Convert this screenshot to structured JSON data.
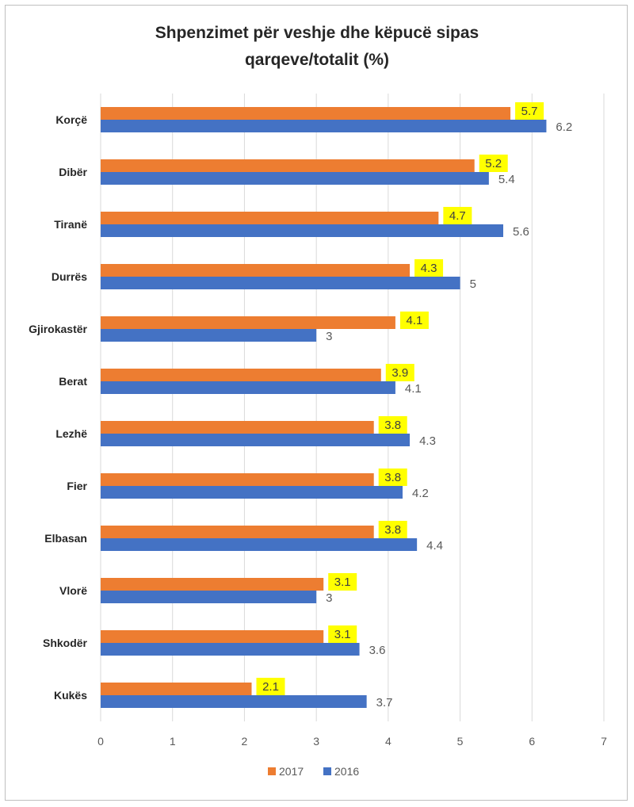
{
  "chart_data": {
    "type": "bar",
    "orientation": "horizontal",
    "title_lines": [
      "Shpenzimet për veshje dhe këpucë sipas",
      "qarqeve/totalit (%)"
    ],
    "categories": [
      "Korçë",
      "Dibër",
      "Tiranë",
      "Durrës",
      "Gjirokastër",
      "Berat",
      "Lezhë",
      "Fier",
      "Elbasan",
      "Vlorë",
      "Shkodër",
      "Kukës"
    ],
    "series": [
      {
        "name": "2017",
        "color": "#ED7D31",
        "label_highlight": "#FFFF00",
        "values": [
          5.7,
          5.2,
          4.7,
          4.3,
          4.1,
          3.9,
          3.8,
          3.8,
          3.8,
          3.1,
          3.1,
          2.1
        ]
      },
      {
        "name": "2016",
        "color": "#4472C4",
        "values": [
          6.2,
          5.4,
          5.6,
          5,
          3,
          4.1,
          4.3,
          4.2,
          4.4,
          3,
          3.6,
          3.7
        ]
      }
    ],
    "xlim": [
      0,
      7
    ],
    "xticks": [
      "0",
      "1",
      "2",
      "3",
      "4",
      "5",
      "6",
      "7"
    ],
    "grid": "vertical",
    "legend": "bottom"
  }
}
